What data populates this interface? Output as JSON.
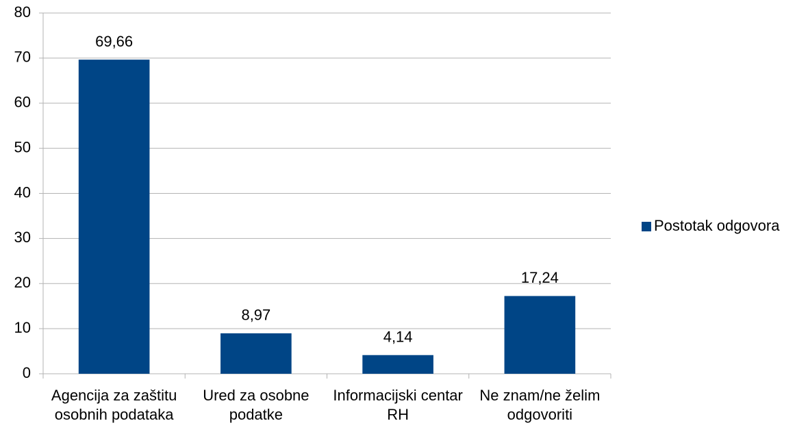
{
  "chart_data": {
    "type": "bar",
    "categories": [
      "Agencija za zaštitu osobnih podataka",
      "Ured za osobne podatke",
      "Informacijski centar RH",
      "Ne znam/ne želim odgovoriti"
    ],
    "series": [
      {
        "name": "Postotak odgovora",
        "color": "#004586",
        "values": [
          69.66,
          8.97,
          4.14,
          17.24
        ],
        "value_labels": [
          "69,66",
          "8,97",
          "4,14",
          "17,24"
        ]
      }
    ],
    "ylim": [
      0,
      80
    ],
    "yticks": [
      0,
      10,
      20,
      30,
      40,
      50,
      60,
      70,
      80
    ],
    "grid": true,
    "legend": "right"
  }
}
